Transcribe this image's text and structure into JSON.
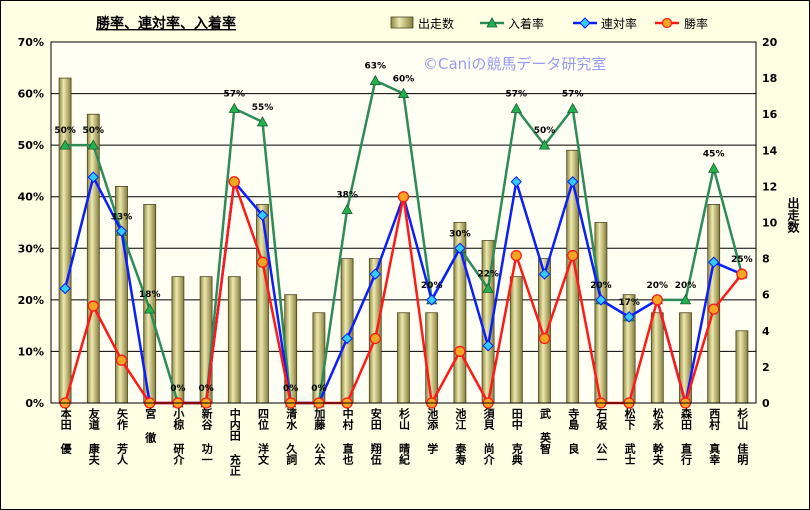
{
  "watermark": "©Caniの競馬データ研究室",
  "colors": {
    "background": "#FFFFE4",
    "plot_background": "#FFFFF3"
  },
  "chart_data": {
    "type": "bar+line",
    "title": "勝率、連対率、入着率",
    "legend": "top",
    "grid": true,
    "categories": [
      "本田 優",
      "友道 康夫",
      "矢作 芳人",
      "宮 徹",
      "小椋 研介",
      "新谷 功一",
      "中内田 充正",
      "四位 洋文",
      "清水 久詞",
      "加藤 公太",
      "中村 直也",
      "安田 翔伍",
      "杉山 晴紀",
      "池添 学",
      "池江 泰寿",
      "須貝 尚介",
      "田中 克典",
      "武 英智",
      "寺島 良",
      "石坂 公一",
      "松下 武士",
      "松永 幹夫",
      "森田 直行",
      "西村 真幸",
      "杉山 佳明"
    ],
    "y_axis": {
      "label": "",
      "ylim": [
        0,
        70
      ],
      "ticks": [
        "0%",
        "10%",
        "20%",
        "30%",
        "40%",
        "50%",
        "60%",
        "70%"
      ]
    },
    "y2_axis": {
      "label": "出走数",
      "ylim": [
        0,
        20
      ],
      "ticks": [
        "0",
        "2",
        "4",
        "6",
        "8",
        "10",
        "12",
        "14",
        "16",
        "18",
        "20"
      ]
    },
    "series": [
      {
        "name": "出走数",
        "type": "bar",
        "axis": "right",
        "color": "#C8C07A",
        "values": [
          18,
          16,
          12,
          11,
          7,
          7,
          7,
          11,
          6,
          5,
          8,
          8,
          5,
          5,
          10,
          9,
          7,
          8,
          14,
          10,
          6,
          5,
          5,
          11,
          4
        ]
      },
      {
        "name": "入着率",
        "type": "line",
        "axis": "left",
        "color": "#2E8B57",
        "marker": "triangle",
        "marker_fill": "#22B14C",
        "values": [
          50.0,
          50.0,
          33.3,
          18.2,
          0,
          0,
          57.1,
          54.5,
          0,
          0,
          37.5,
          62.5,
          60.0,
          20.0,
          30.0,
          22.2,
          57.1,
          50.0,
          57.1,
          20.0,
          16.7,
          20.0,
          20.0,
          45.5,
          25.0
        ],
        "labels": [
          "50%",
          "50%",
          "33%",
          "18%",
          "0%",
          "0%",
          "57%",
          "55%",
          "0%",
          "0%",
          "38%",
          "63%",
          "60%",
          "20%",
          "30%",
          "22%",
          "57%",
          "50%",
          "57%",
          "20%",
          "17%",
          "20%",
          "20%",
          "45%",
          "25%"
        ]
      },
      {
        "name": "連対率",
        "type": "line",
        "axis": "left",
        "color": "#0A1EFF",
        "marker": "diamond",
        "marker_fill": "#33CCFF",
        "values": [
          22.2,
          43.8,
          33.3,
          0,
          0,
          0,
          42.9,
          36.4,
          0,
          0,
          12.5,
          25.0,
          40.0,
          20.0,
          30.0,
          11.1,
          42.9,
          25.0,
          42.9,
          20.0,
          16.7,
          20.0,
          0,
          27.3,
          25.0
        ]
      },
      {
        "name": "勝率",
        "type": "line",
        "axis": "left",
        "color": "#FF1A1A",
        "marker": "circle",
        "marker_fill": "#F5A623",
        "values": [
          0,
          18.8,
          8.3,
          0,
          0,
          0,
          42.9,
          27.3,
          0,
          0,
          0,
          12.5,
          40.0,
          0,
          10.0,
          0,
          28.6,
          12.5,
          28.6,
          0,
          0,
          20.0,
          0,
          18.2,
          25.0
        ]
      }
    ]
  }
}
